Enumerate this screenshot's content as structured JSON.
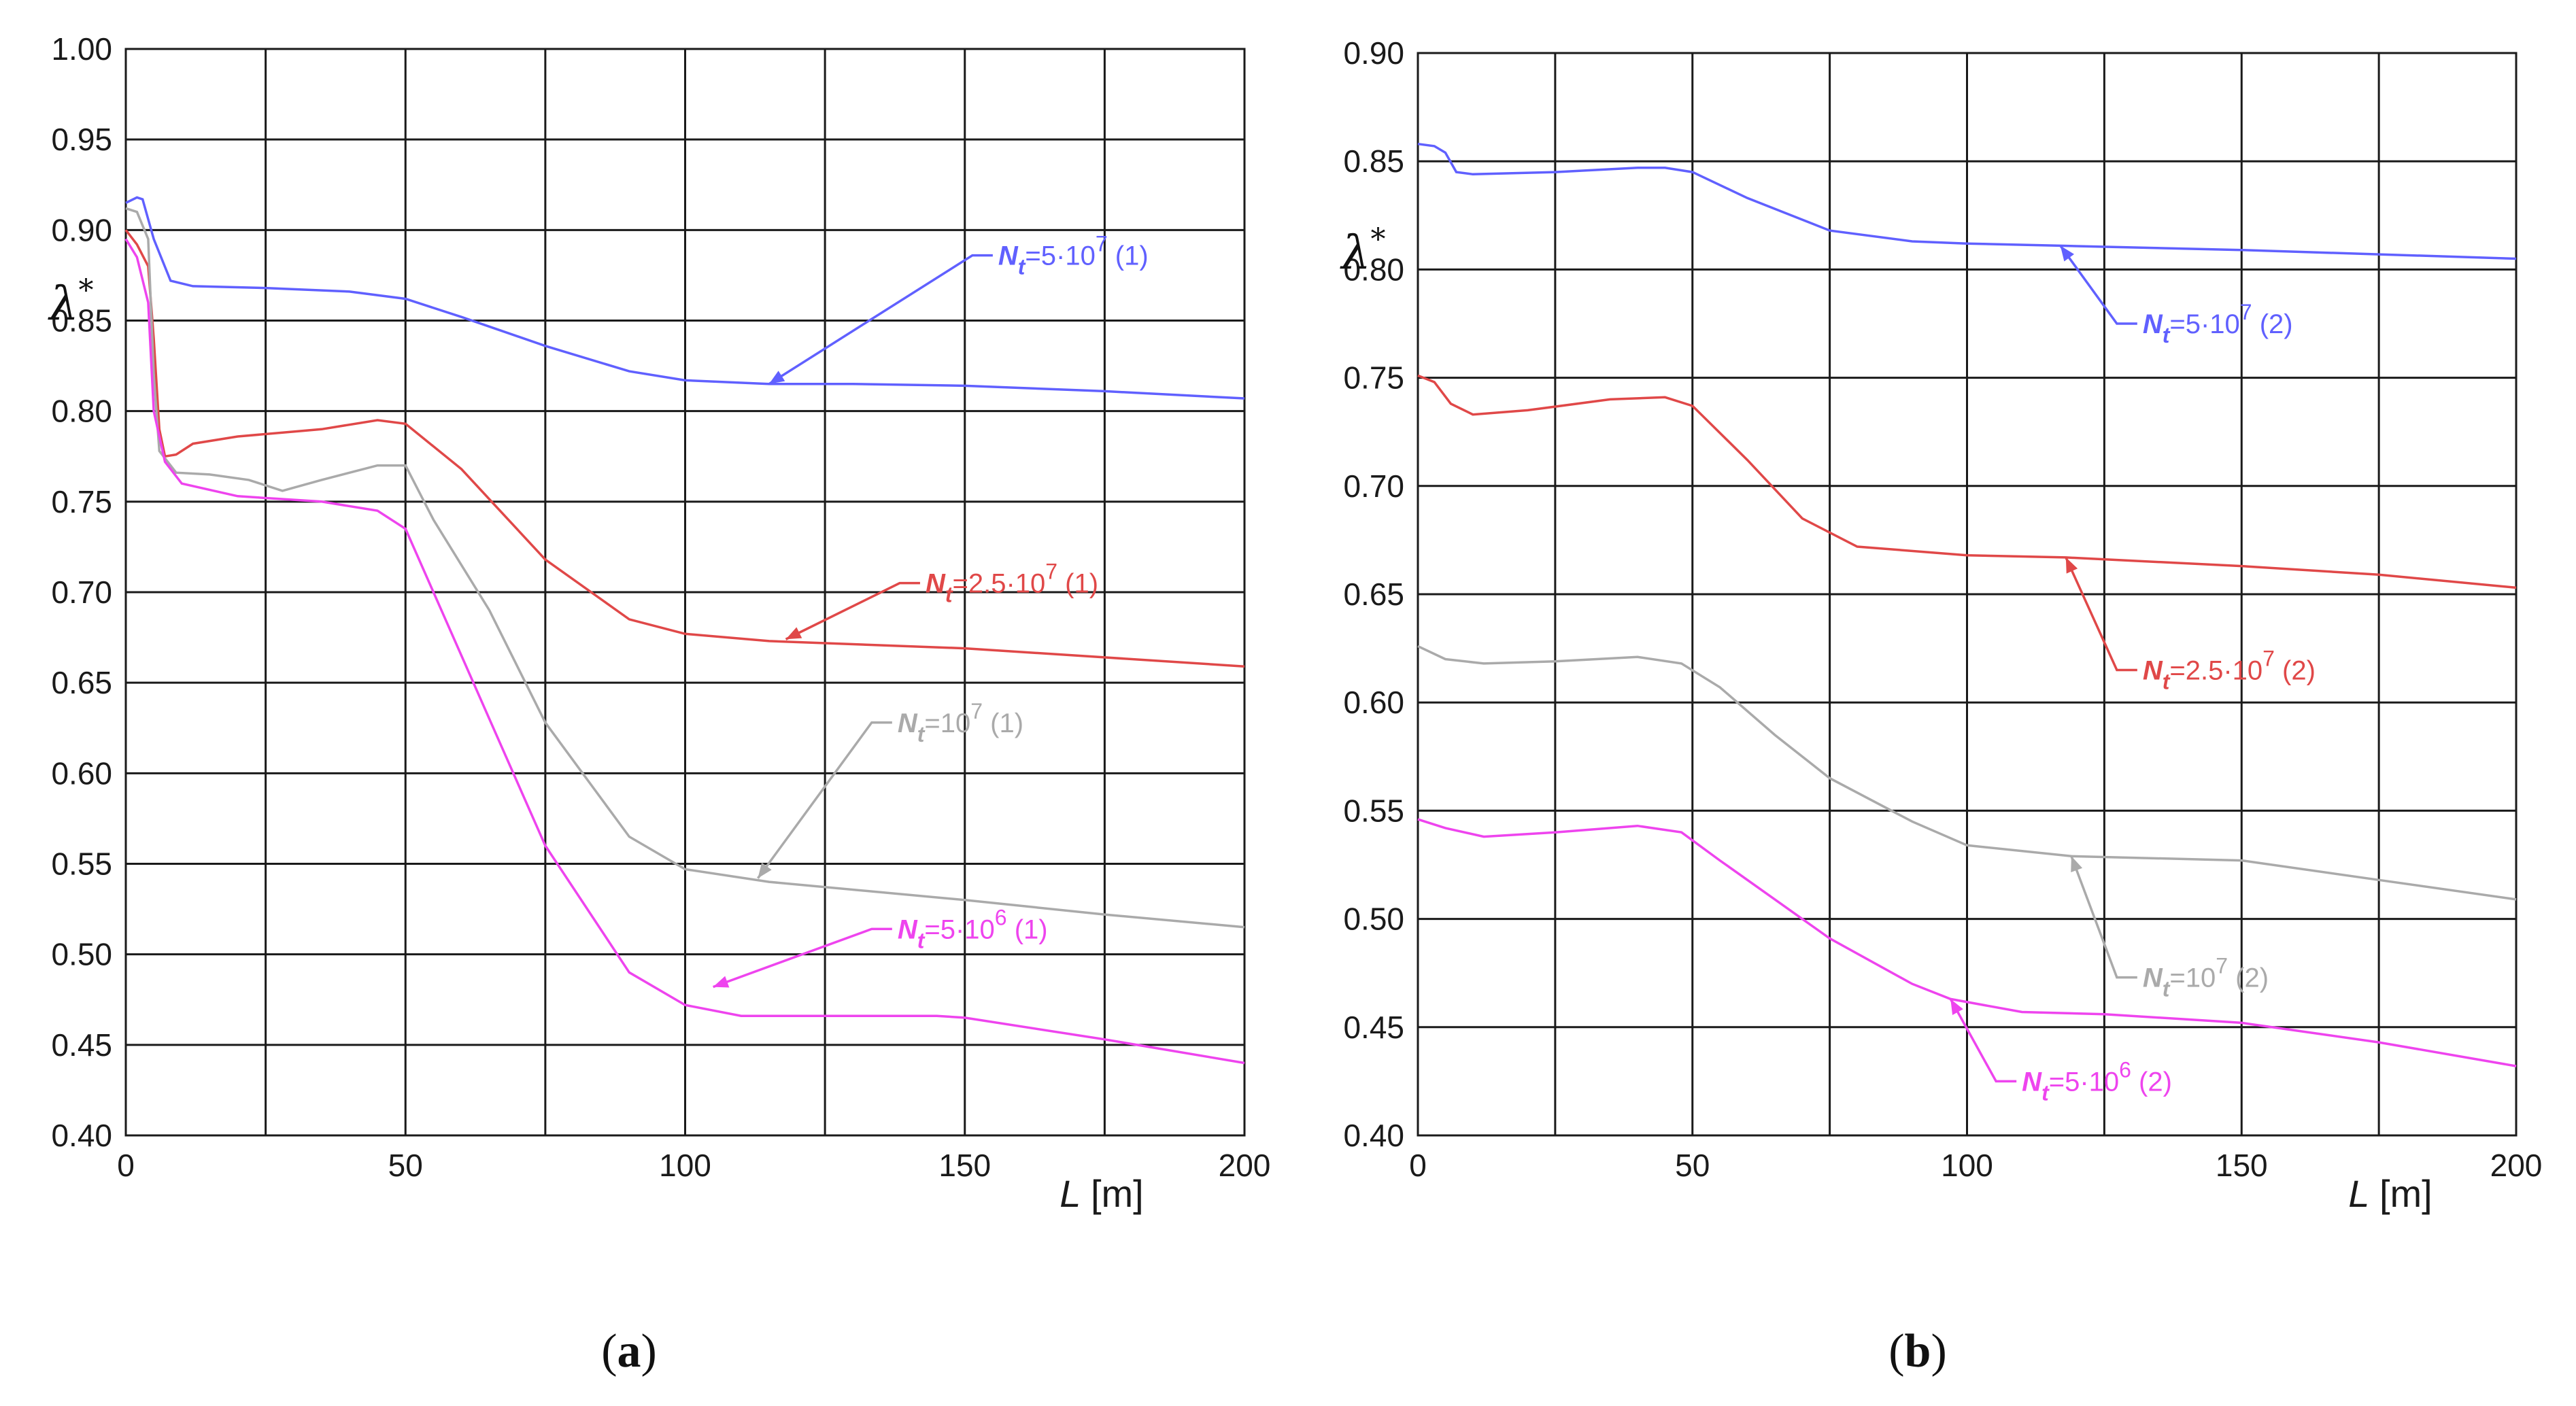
{
  "chart_data": [
    {
      "id": "a",
      "type": "line",
      "panel_label": "a",
      "title": "",
      "xlabel": "L [m]",
      "ylabel": "λ*",
      "xlim": [
        0,
        200
      ],
      "ylim": [
        0.4,
        1.0
      ],
      "xticks": [
        0,
        50,
        100,
        150,
        200
      ],
      "yticks": [
        "0.40",
        "0.45",
        "0.50",
        "0.55",
        "0.60",
        "0.65",
        "0.70",
        "0.75",
        "0.80",
        "0.85",
        "0.90",
        "0.95",
        "1.00"
      ],
      "grid": true,
      "series": [
        {
          "name": "Nt=5·10^7 (1)",
          "color": "#6060ff",
          "label_parts": [
            "N",
            "t",
            "=5·10",
            "7",
            " (1)"
          ],
          "label_anchor": [
            155,
            0.886
          ],
          "arrow_target": [
            115,
            0.815
          ],
          "points": [
            [
              0,
              0.915
            ],
            [
              2,
              0.918
            ],
            [
              3,
              0.917
            ],
            [
              5,
              0.895
            ],
            [
              8,
              0.872
            ],
            [
              12,
              0.869
            ],
            [
              25,
              0.868
            ],
            [
              40,
              0.866
            ],
            [
              50,
              0.862
            ],
            [
              60,
              0.852
            ],
            [
              75,
              0.836
            ],
            [
              90,
              0.822
            ],
            [
              100,
              0.817
            ],
            [
              115,
              0.815
            ],
            [
              130,
              0.815
            ],
            [
              150,
              0.814
            ],
            [
              175,
              0.811
            ],
            [
              200,
              0.807
            ]
          ]
        },
        {
          "name": "Nt=2.5·10^7 (1)",
          "color": "#e04848",
          "label_parts": [
            "N",
            "t",
            "=2.5·10",
            "7",
            " (1)"
          ],
          "label_anchor": [
            142,
            0.705
          ],
          "arrow_target": [
            118,
            0.674
          ],
          "points": [
            [
              0,
              0.9
            ],
            [
              2,
              0.892
            ],
            [
              4,
              0.88
            ],
            [
              5,
              0.84
            ],
            [
              6,
              0.79
            ],
            [
              7,
              0.775
            ],
            [
              9,
              0.776
            ],
            [
              12,
              0.782
            ],
            [
              20,
              0.786
            ],
            [
              35,
              0.79
            ],
            [
              45,
              0.795
            ],
            [
              50,
              0.793
            ],
            [
              60,
              0.768
            ],
            [
              75,
              0.718
            ],
            [
              90,
              0.685
            ],
            [
              100,
              0.677
            ],
            [
              115,
              0.673
            ],
            [
              150,
              0.669
            ],
            [
              175,
              0.664
            ],
            [
              200,
              0.659
            ]
          ]
        },
        {
          "name": "Nt=10^7 (1)",
          "color": "#aaaaaa",
          "label_parts": [
            "N",
            "t",
            "=10",
            "7",
            " (1)"
          ],
          "label_anchor": [
            137,
            0.628
          ],
          "arrow_target": [
            113,
            0.542
          ],
          "points": [
            [
              0,
              0.912
            ],
            [
              2,
              0.91
            ],
            [
              4,
              0.895
            ],
            [
              5,
              0.82
            ],
            [
              6,
              0.778
            ],
            [
              9,
              0.766
            ],
            [
              15,
              0.765
            ],
            [
              22,
              0.762
            ],
            [
              28,
              0.756
            ],
            [
              35,
              0.762
            ],
            [
              45,
              0.77
            ],
            [
              50,
              0.77
            ],
            [
              55,
              0.74
            ],
            [
              65,
              0.69
            ],
            [
              75,
              0.628
            ],
            [
              90,
              0.565
            ],
            [
              100,
              0.547
            ],
            [
              115,
              0.54
            ],
            [
              150,
              0.53
            ],
            [
              175,
              0.522
            ],
            [
              200,
              0.515
            ]
          ]
        },
        {
          "name": "Nt=5·10^6 (1)",
          "color": "#ee44ee",
          "label_parts": [
            "N",
            "t",
            "=5·10",
            "6",
            " (1)"
          ],
          "label_anchor": [
            137,
            0.514
          ],
          "arrow_target": [
            105,
            0.482
          ],
          "points": [
            [
              0,
              0.895
            ],
            [
              2,
              0.885
            ],
            [
              4,
              0.86
            ],
            [
              5,
              0.8
            ],
            [
              7,
              0.772
            ],
            [
              10,
              0.76
            ],
            [
              20,
              0.753
            ],
            [
              35,
              0.75
            ],
            [
              45,
              0.745
            ],
            [
              50,
              0.735
            ],
            [
              55,
              0.7
            ],
            [
              65,
              0.63
            ],
            [
              75,
              0.56
            ],
            [
              90,
              0.49
            ],
            [
              100,
              0.472
            ],
            [
              110,
              0.466
            ],
            [
              125,
              0.466
            ],
            [
              145,
              0.466
            ],
            [
              150,
              0.465
            ],
            [
              175,
              0.453
            ],
            [
              200,
              0.44
            ]
          ]
        }
      ]
    },
    {
      "id": "b",
      "type": "line",
      "panel_label": "b",
      "title": "",
      "xlabel": "L [m]",
      "ylabel": "λ*",
      "xlim": [
        0,
        200
      ],
      "ylim": [
        0.4,
        0.9
      ],
      "xticks": [
        0,
        50,
        100,
        150,
        200
      ],
      "yticks": [
        "0.40",
        "0.45",
        "0.50",
        "0.55",
        "0.60",
        "0.65",
        "0.70",
        "0.75",
        "0.80",
        "0.85",
        "0.90"
      ],
      "grid": true,
      "series": [
        {
          "name": "Nt=5·10^7 (2)",
          "color": "#6060ff",
          "label_parts": [
            "N",
            "t",
            "=5·10",
            "7",
            " (2)"
          ],
          "label_anchor": [
            131,
            0.775
          ],
          "arrow_target": [
            117,
            0.811
          ],
          "points": [
            [
              0,
              0.858
            ],
            [
              3,
              0.857
            ],
            [
              5,
              0.854
            ],
            [
              7,
              0.845
            ],
            [
              10,
              0.844
            ],
            [
              25,
              0.845
            ],
            [
              40,
              0.847
            ],
            [
              45,
              0.847
            ],
            [
              50,
              0.845
            ],
            [
              60,
              0.833
            ],
            [
              75,
              0.818
            ],
            [
              90,
              0.813
            ],
            [
              100,
              0.812
            ],
            [
              117,
              0.811
            ],
            [
              150,
              0.809
            ],
            [
              175,
              0.807
            ],
            [
              200,
              0.805
            ]
          ]
        },
        {
          "name": "Nt=2.5·10^7 (2)",
          "color": "#e04848",
          "label_parts": [
            "N",
            "t",
            "=2.5·10",
            "7",
            " (2)"
          ],
          "label_anchor": [
            131,
            0.615
          ],
          "arrow_target": [
            118,
            0.667
          ],
          "points": [
            [
              0,
              0.751
            ],
            [
              3,
              0.748
            ],
            [
              6,
              0.738
            ],
            [
              10,
              0.733
            ],
            [
              20,
              0.735
            ],
            [
              35,
              0.74
            ],
            [
              45,
              0.741
            ],
            [
              50,
              0.737
            ],
            [
              60,
              0.712
            ],
            [
              70,
              0.685
            ],
            [
              80,
              0.672
            ],
            [
              100,
              0.668
            ],
            [
              118,
              0.667
            ],
            [
              150,
              0.663
            ],
            [
              175,
              0.659
            ],
            [
              200,
              0.653
            ]
          ]
        },
        {
          "name": "Nt=10^7 (2)",
          "color": "#aaaaaa",
          "label_parts": [
            "N",
            "t",
            "=10",
            "7",
            " (2)"
          ],
          "label_anchor": [
            131,
            0.473
          ],
          "arrow_target": [
            119,
            0.529
          ],
          "points": [
            [
              0,
              0.626
            ],
            [
              5,
              0.62
            ],
            [
              12,
              0.618
            ],
            [
              25,
              0.619
            ],
            [
              40,
              0.621
            ],
            [
              48,
              0.618
            ],
            [
              55,
              0.607
            ],
            [
              65,
              0.585
            ],
            [
              75,
              0.565
            ],
            [
              90,
              0.545
            ],
            [
              100,
              0.534
            ],
            [
              119,
              0.529
            ],
            [
              150,
              0.527
            ],
            [
              175,
              0.518
            ],
            [
              200,
              0.509
            ]
          ]
        },
        {
          "name": "Nt=5·10^6 (2)",
          "color": "#ee44ee",
          "label_parts": [
            "N",
            "t",
            "=5·10",
            "6",
            " (2)"
          ],
          "label_anchor": [
            109,
            0.425
          ],
          "arrow_target": [
            97,
            0.463
          ],
          "points": [
            [
              0,
              0.546
            ],
            [
              5,
              0.542
            ],
            [
              12,
              0.538
            ],
            [
              25,
              0.54
            ],
            [
              40,
              0.543
            ],
            [
              48,
              0.54
            ],
            [
              55,
              0.527
            ],
            [
              65,
              0.509
            ],
            [
              75,
              0.491
            ],
            [
              90,
              0.47
            ],
            [
              97,
              0.463
            ],
            [
              110,
              0.457
            ],
            [
              125,
              0.456
            ],
            [
              150,
              0.452
            ],
            [
              175,
              0.443
            ],
            [
              200,
              0.432
            ]
          ]
        }
      ]
    }
  ]
}
